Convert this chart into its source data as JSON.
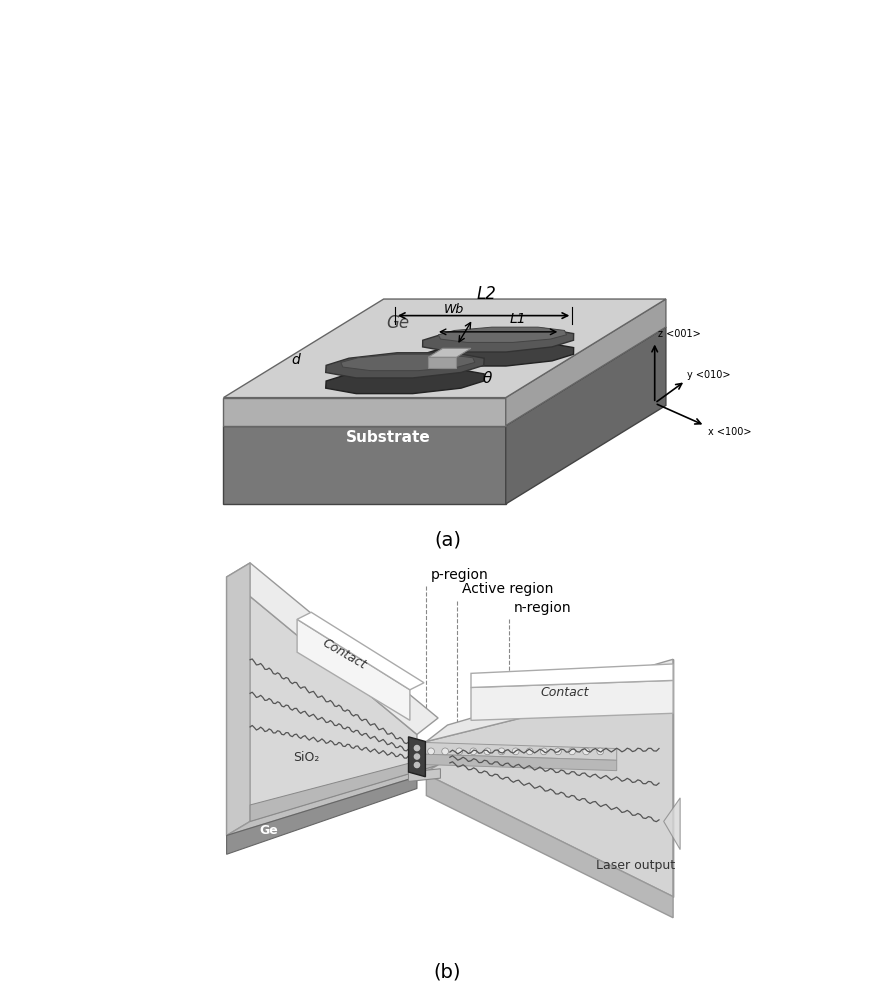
{
  "fig_width": 8.95,
  "fig_height": 10.0,
  "bg_color": "#ffffff",
  "label_a": "(a)",
  "label_b": "(b)",
  "substrate_label": "Substrate",
  "ge_label": "Ge",
  "L2_label": "L2",
  "L1_label": "L1",
  "Wb_label": "Wb",
  "d_label": "d",
  "theta_label": "θ",
  "z_label": "z <001>",
  "y_label": "y <010>",
  "x_label": "x <100>",
  "p_region_label": "p-region",
  "active_region_label": "Active region",
  "n_region_label": "n-region",
  "contact_label_left": "Contact",
  "contact_label_right": "Contact",
  "sio2_label": "SiO₂",
  "ge_b_label": "Ge",
  "laser_output_label": "Laser output"
}
